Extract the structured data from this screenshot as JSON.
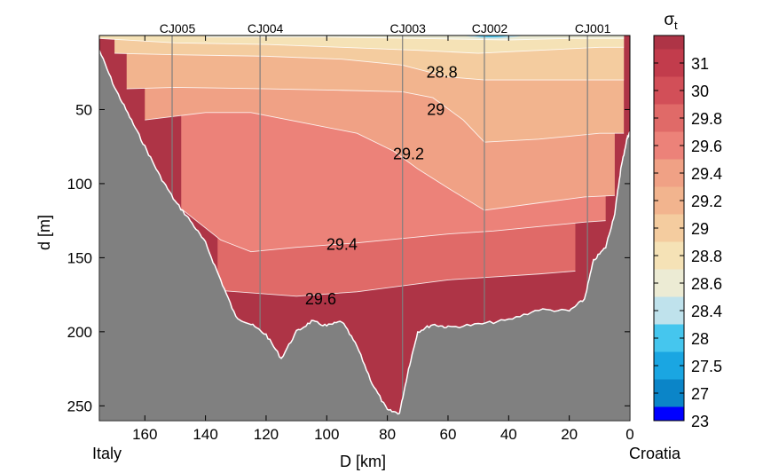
{
  "chart_data": {
    "type": "contour_section",
    "xlabel": "D [km]",
    "ylabel": "d [m]",
    "xlim": [
      175,
      0
    ],
    "ylim": [
      260,
      0
    ],
    "x_ticks": [
      160,
      140,
      120,
      100,
      80,
      60,
      40,
      20,
      0
    ],
    "y_ticks": [
      50,
      100,
      150,
      200,
      250
    ],
    "left_endpoint_label": "Italy",
    "right_endpoint_label": "Croatia",
    "colorbar_title_base": "σ",
    "colorbar_title_sub": "t",
    "colorbar_levels": [
      "23",
      "27",
      "27.5",
      "28",
      "28.4",
      "28.6",
      "28.8",
      "29",
      "29.2",
      "29.4",
      "29.6",
      "29.8",
      "30",
      "31"
    ],
    "colorbar_colors": [
      "#0000ff",
      "#0b85c8",
      "#1aa6e2",
      "#45c6ee",
      "#bfe2ec",
      "#ecebd4",
      "#f5e2b6",
      "#f4cc9f",
      "#f2b48e",
      "#f0a185",
      "#ec8279",
      "#e06a68",
      "#d24f58",
      "#c23c4c",
      "#ae3446"
    ],
    "stations": [
      {
        "name": "CJ005",
        "distance_km": 151
      },
      {
        "name": "CJ004",
        "distance_km": 122
      },
      {
        "name": "CJ003",
        "distance_km": 75
      },
      {
        "name": "CJ002",
        "distance_km": 48
      },
      {
        "name": "CJ001",
        "distance_km": 14
      }
    ],
    "contour_labels": [
      {
        "text": "28.8",
        "distance_km": 62,
        "depth_m": 25
      },
      {
        "text": "29",
        "distance_km": 64,
        "depth_m": 50
      },
      {
        "text": "29.2",
        "distance_km": 73,
        "depth_m": 80
      },
      {
        "text": "29.4",
        "distance_km": 95,
        "depth_m": 141
      },
      {
        "text": "29.6",
        "distance_km": 102,
        "depth_m": 178
      }
    ],
    "isopycnals": [
      {
        "level": 28.4,
        "points": [
          [
            140,
            1
          ],
          [
            100,
            1
          ],
          [
            70,
            2
          ],
          [
            40,
            3
          ],
          [
            20,
            2
          ],
          [
            2,
            2
          ]
        ]
      },
      {
        "level": 28.6,
        "points": [
          [
            175,
            2
          ],
          [
            150,
            5
          ],
          [
            120,
            6
          ],
          [
            95,
            8
          ],
          [
            70,
            10
          ],
          [
            50,
            12
          ],
          [
            30,
            10
          ],
          [
            10,
            8
          ],
          [
            2,
            8
          ]
        ]
      },
      {
        "level": 28.8,
        "points": [
          [
            170,
            12
          ],
          [
            150,
            13
          ],
          [
            120,
            14
          ],
          [
            95,
            16
          ],
          [
            75,
            20
          ],
          [
            60,
            28
          ],
          [
            48,
            30
          ],
          [
            30,
            30
          ],
          [
            15,
            30
          ],
          [
            2,
            30
          ]
        ]
      },
      {
        "level": 29.0,
        "points": [
          [
            166,
            36
          ],
          [
            150,
            35
          ],
          [
            120,
            36
          ],
          [
            95,
            37
          ],
          [
            75,
            38
          ],
          [
            65,
            42
          ],
          [
            55,
            57
          ],
          [
            48,
            72
          ],
          [
            30,
            70
          ],
          [
            10,
            66
          ],
          [
            2,
            66
          ]
        ]
      },
      {
        "level": 29.2,
        "points": [
          [
            160,
            57
          ],
          [
            140,
            52
          ],
          [
            125,
            52
          ],
          [
            110,
            58
          ],
          [
            90,
            66
          ],
          [
            78,
            78
          ],
          [
            70,
            90
          ],
          [
            60,
            103
          ],
          [
            48,
            118
          ],
          [
            30,
            113
          ],
          [
            15,
            109
          ],
          [
            5,
            108
          ]
        ]
      },
      {
        "level": 29.4,
        "points": [
          [
            148,
            117
          ],
          [
            135,
            138
          ],
          [
            125,
            146
          ],
          [
            110,
            143
          ],
          [
            90,
            140
          ],
          [
            75,
            137
          ],
          [
            60,
            134
          ],
          [
            45,
            132
          ],
          [
            30,
            129
          ],
          [
            15,
            126
          ],
          [
            8,
            125
          ]
        ]
      },
      {
        "level": 29.6,
        "points": [
          [
            136,
            172
          ],
          [
            110,
            176
          ],
          [
            90,
            173
          ],
          [
            75,
            169
          ],
          [
            60,
            165
          ],
          [
            45,
            163
          ],
          [
            30,
            161
          ],
          [
            18,
            159
          ]
        ]
      }
    ],
    "bathymetry_depth_m": [
      [
        175,
        10
      ],
      [
        170,
        35
      ],
      [
        165,
        55
      ],
      [
        160,
        75
      ],
      [
        155,
        95
      ],
      [
        150,
        112
      ],
      [
        145,
        125
      ],
      [
        140,
        140
      ],
      [
        135,
        165
      ],
      [
        130,
        190
      ],
      [
        125,
        195
      ],
      [
        120,
        202
      ],
      [
        115,
        218
      ],
      [
        110,
        200
      ],
      [
        105,
        193
      ],
      [
        100,
        196
      ],
      [
        95,
        193
      ],
      [
        90,
        210
      ],
      [
        85,
        235
      ],
      [
        80,
        253
      ],
      [
        76,
        255
      ],
      [
        73,
        225
      ],
      [
        70,
        200
      ],
      [
        65,
        195
      ],
      [
        60,
        197
      ],
      [
        50,
        195
      ],
      [
        40,
        192
      ],
      [
        30,
        185
      ],
      [
        20,
        186
      ],
      [
        15,
        178
      ],
      [
        12,
        152
      ],
      [
        8,
        143
      ],
      [
        5,
        120
      ],
      [
        3,
        90
      ],
      [
        1,
        70
      ],
      [
        0,
        65
      ]
    ]
  }
}
